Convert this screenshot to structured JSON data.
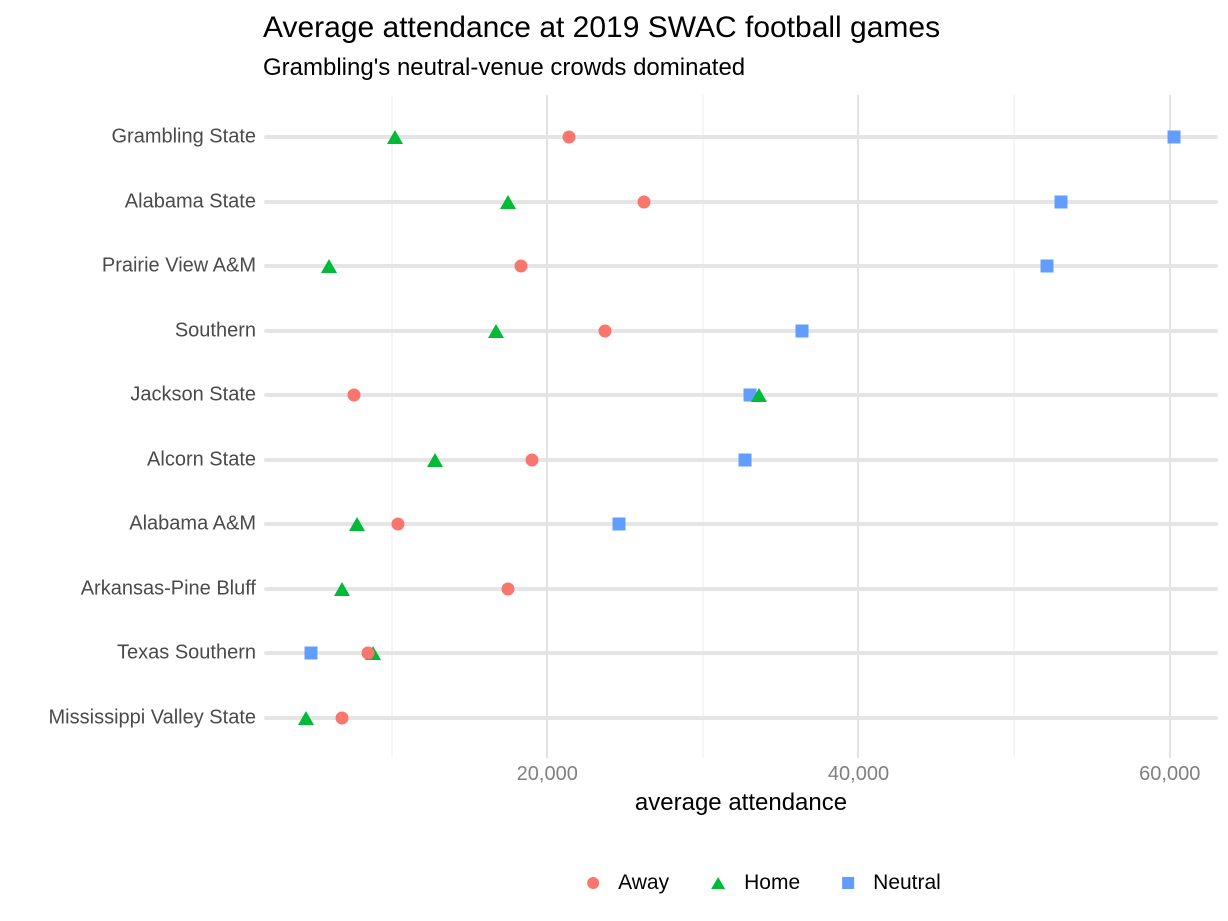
{
  "chart_data": {
    "type": "scatter",
    "variant": "cleveland-dot-plot",
    "title": "Average attendance at 2019 SWAC football games",
    "subtitle": "Grambling's neutral-venue crowds dominated",
    "xlabel": "average attendance",
    "categories": [
      "Grambling State",
      "Alabama State",
      "Prairie View A&M",
      "Southern",
      "Jackson State",
      "Alcorn State",
      "Alabama A&M",
      "Arkansas-Pine Bluff",
      "Texas Southern",
      "Mississippi Valley State"
    ],
    "series": [
      {
        "name": "Away",
        "marker": "circle",
        "color": "#F8766D",
        "values": [
          21400,
          26200,
          18300,
          23700,
          7600,
          19000,
          10400,
          17500,
          8500,
          6800
        ]
      },
      {
        "name": "Home",
        "marker": "triangle",
        "color": "#00BA38",
        "values": [
          10200,
          17500,
          6000,
          16700,
          33600,
          12800,
          7800,
          6800,
          8800,
          4500
        ]
      },
      {
        "name": "Neutral",
        "marker": "square",
        "color": "#619CFF",
        "values": [
          60300,
          53000,
          52100,
          36400,
          33000,
          32700,
          24600,
          null,
          4800,
          null
        ]
      }
    ],
    "x_axis": {
      "range": [
        1800,
        63100
      ],
      "ticks": [
        {
          "value": 20000,
          "label": "20,000"
        },
        {
          "value": 40000,
          "label": "40,000"
        },
        {
          "value": 60000,
          "label": "60,000"
        }
      ],
      "minor_ticks": [
        10000,
        30000,
        50000
      ],
      "grid": true
    },
    "legend": {
      "position": "bottom",
      "items": [
        "Away",
        "Home",
        "Neutral"
      ]
    }
  }
}
